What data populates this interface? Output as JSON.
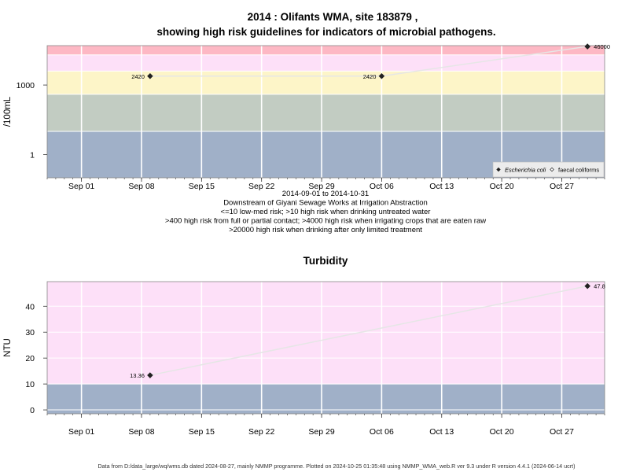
{
  "page_title_line1": "2014 : Olifants WMA, site 183879 ,",
  "page_title_line2": "showing high risk guidelines for indicators of microbial pathogens.",
  "footer": "Data from D:/data_large/wq/wms.db dated 2024-08-27, mainly NMMP programme. Plotted on 2024-10-25 01:35:48 using NMMP_WMA_web.R ver 9.3 under R version 4.4.1 (2024-06-14 ucrt)",
  "chart_data": [
    {
      "type": "line",
      "title": "",
      "xlabel": "",
      "ylabel": "/100mL",
      "y_scale": "log10",
      "ylim": [
        0.1,
        50000
      ],
      "xlim": [
        "2014-08-28",
        "2014-11-01"
      ],
      "x_ticks": [
        "Sep 01",
        "Sep 08",
        "Sep 15",
        "Sep 22",
        "Sep 29",
        "Oct 06",
        "Oct 13",
        "Oct 20",
        "Oct 27"
      ],
      "x_tick_dates": [
        "2014-09-01",
        "2014-09-08",
        "2014-09-15",
        "2014-09-22",
        "2014-09-29",
        "2014-10-06",
        "2014-10-13",
        "2014-10-20",
        "2014-10-27"
      ],
      "y_ticks": [
        1,
        1000
      ],
      "y_tick_labels": [
        "1",
        "1000"
      ],
      "grid": true,
      "bands": [
        {
          "from": 0.1,
          "to": 10,
          "color": "#a0b0c8"
        },
        {
          "from": 10,
          "to": 400,
          "color": "#c2ccc2"
        },
        {
          "from": 400,
          "to": 4000,
          "color": "#fdf5c8"
        },
        {
          "from": 4000,
          "to": 20000,
          "color": "#fde0f8"
        },
        {
          "from": 20000,
          "to": 50000,
          "color": "#fdb8c4"
        }
      ],
      "series": [
        {
          "name": "Escherichia coli",
          "marker": "filled-diamond",
          "x": [
            "2014-09-09",
            "2014-10-06",
            "2014-10-30"
          ],
          "y": [
            2420,
            2420,
            46000
          ],
          "labels": [
            "2420",
            "2420",
            "46000"
          ]
        },
        {
          "name": "faecal coliforms",
          "marker": "open-diamond",
          "x": [],
          "y": [],
          "labels": []
        }
      ],
      "legend_position": "bottom-right",
      "notes": [
        "2014-09-01 to 2014-10-31",
        "Downstream of Giyani Sewage Works at Irrigation Abstraction",
        "<=10 low-med risk; >10 high risk when drinking untreated water",
        ">400 high risk from full or partial contact; >4000 high risk when irrigating crops that are eaten raw",
        ">20000 high risk when drinking after only limited treatment"
      ]
    },
    {
      "type": "line",
      "title": "Turbidity",
      "xlabel": "",
      "ylabel": "NTU",
      "ylim": [
        -1.5,
        49.5
      ],
      "xlim": [
        "2014-08-28",
        "2014-11-01"
      ],
      "x_ticks": [
        "Sep 01",
        "Sep 08",
        "Sep 15",
        "Sep 22",
        "Sep 29",
        "Oct 06",
        "Oct 13",
        "Oct 20",
        "Oct 27"
      ],
      "x_tick_dates": [
        "2014-09-01",
        "2014-09-08",
        "2014-09-15",
        "2014-09-22",
        "2014-09-29",
        "2014-10-06",
        "2014-10-13",
        "2014-10-20",
        "2014-10-27"
      ],
      "y_ticks": [
        0,
        10,
        20,
        30,
        40
      ],
      "y_tick_labels": [
        "0",
        "10",
        "20",
        "30",
        "40"
      ],
      "grid": true,
      "bands": [
        {
          "from": -1.5,
          "to": 10,
          "color": "#a0b0c8"
        },
        {
          "from": 10,
          "to": 49.5,
          "color": "#fde0f8"
        }
      ],
      "series": [
        {
          "name": "",
          "marker": "filled-diamond",
          "x": [
            "2014-09-09",
            "2014-10-30"
          ],
          "y": [
            13.36,
            47.8
          ],
          "labels": [
            "13.36",
            "47.8"
          ]
        }
      ]
    }
  ]
}
